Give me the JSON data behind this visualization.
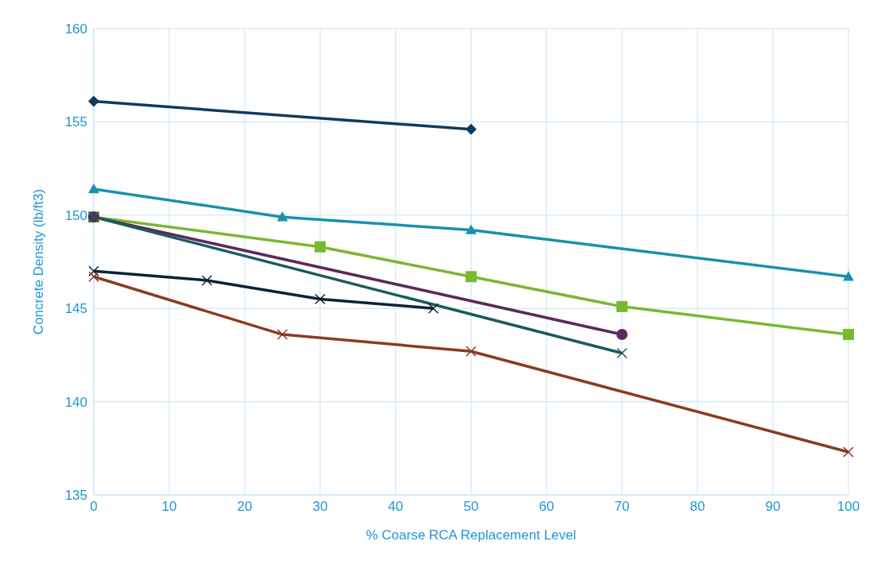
{
  "chart_data": {
    "type": "line",
    "xlabel": "% Coarse RCA Replacement Level",
    "ylabel": "Concrete Density (lb/ft3)",
    "xlim": [
      0,
      100
    ],
    "xticks": [
      0,
      10,
      20,
      30,
      40,
      50,
      60,
      70,
      80,
      90,
      100
    ],
    "ylim": [
      135,
      160
    ],
    "yticks": [
      135,
      140,
      145,
      150,
      155,
      160
    ],
    "grid": true,
    "legend": false,
    "series": [
      {
        "color": "#123a5e",
        "marker": "diamond",
        "x": [
          0,
          50
        ],
        "values": [
          156.1,
          154.6
        ]
      },
      {
        "color": "#1a90ad",
        "marker": "triangle",
        "x": [
          0,
          25,
          50,
          100
        ],
        "values": [
          151.4,
          149.9,
          149.2,
          146.7
        ]
      },
      {
        "color": "#7ab830",
        "marker": "square",
        "x": [
          0,
          30,
          50,
          70,
          100
        ],
        "values": [
          149.9,
          148.3,
          146.7,
          145.1,
          143.6
        ]
      },
      {
        "color": "#5c2a5c",
        "marker": "circle",
        "x": [
          0,
          70
        ],
        "values": [
          149.9,
          143.6
        ]
      },
      {
        "color": "#1b5b5b",
        "marker": "cross",
        "x": [
          0,
          70
        ],
        "values": [
          149.9,
          142.6
        ]
      },
      {
        "color": "#0c2236",
        "marker": "cross",
        "x": [
          0,
          15,
          30,
          45
        ],
        "values": [
          147.0,
          146.5,
          145.5,
          145.0
        ]
      },
      {
        "color": "#8b3a22",
        "marker": "cross",
        "x": [
          0,
          25,
          50,
          100
        ],
        "values": [
          146.7,
          143.6,
          142.7,
          137.3
        ]
      }
    ]
  }
}
